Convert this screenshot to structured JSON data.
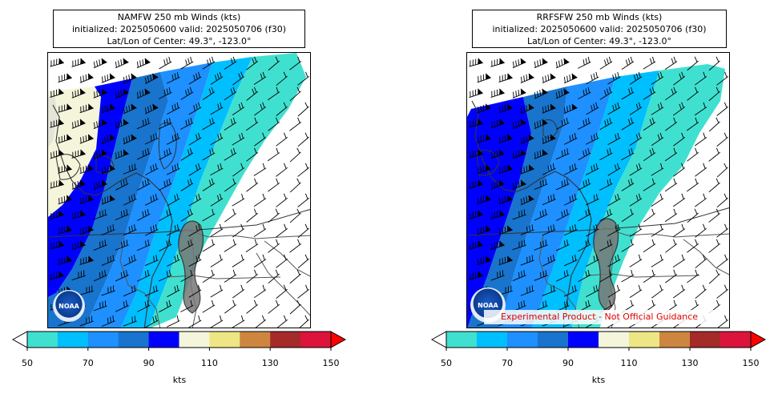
{
  "panels": [
    {
      "title_line1": "NAMFW 250 mb Winds (kts)",
      "title_line2": "initialized: 2025050600 valid: 2025050706 (f30)",
      "title_line3": "Lat/Lon of Center: 49.3°, -123.0°"
    },
    {
      "title_line1": "RRFSFW 250 mb Winds (kts)",
      "title_line2": "initialized: 2025050600 valid: 2025050706 (f30)",
      "title_line3": "Lat/Lon of Center: 49.3°, -123.0°"
    }
  ],
  "colorbar": {
    "label": "kts",
    "tick_labels": [
      "50",
      "70",
      "90",
      "110",
      "130",
      "150"
    ],
    "bins": [
      50,
      60,
      70,
      80,
      90,
      100,
      110,
      120,
      130,
      140,
      150
    ],
    "colors": [
      "#40e0d0",
      "#00bfff",
      "#1e90ff",
      "#1874cd",
      "#0000ff",
      "#f5f5dc",
      "#eee685",
      "#cd853f",
      "#a52a2a",
      "#dc143c"
    ],
    "under_color": "#ffffff",
    "over_color": "#ff0000"
  },
  "logo": {
    "text": "NOAA"
  },
  "disclaimer": "Experimental Product - Not Official Guidance"
}
